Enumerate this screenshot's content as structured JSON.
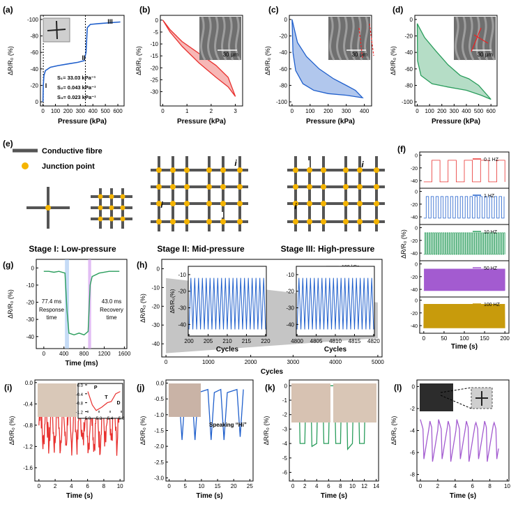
{
  "colors": {
    "red": "#e8312f",
    "blue": "#1f5fcc",
    "green": "#2a9d5c",
    "purple": "#a35bd0",
    "gold": "#c89b0c",
    "grid_dot": "#f5b400",
    "fibre": "#555555",
    "gray": "#9e9e9e"
  },
  "panels": {
    "a": {
      "label": "(a)",
      "xlabel": "Pressure (kPa)",
      "ylabel": "ΔR/R₀ (%)",
      "xticks": [
        "0",
        "100",
        "200",
        "300",
        "400",
        "500",
        "600"
      ],
      "yticks": [
        "-100",
        "-80",
        "-60",
        "-40",
        "-20",
        "0"
      ],
      "region_I": "I",
      "region_II": "II",
      "region_III": "III",
      "s1": "S₁= 33.03 kPa⁻¹",
      "s2": "S₂= 0.043 kPa⁻¹",
      "s3": "S₃= 0.023 kPa⁻¹",
      "curve": [
        [
          0,
          0
        ],
        [
          3,
          -20
        ],
        [
          8,
          -32
        ],
        [
          20,
          -38
        ],
        [
          60,
          -42
        ],
        [
          120,
          -44
        ],
        [
          200,
          -46
        ],
        [
          280,
          -48
        ],
        [
          330,
          -50
        ],
        [
          345,
          -60
        ],
        [
          355,
          -90
        ],
        [
          380,
          -94
        ],
        [
          450,
          -95
        ],
        [
          620,
          -97
        ]
      ]
    },
    "b": {
      "label": "(b)",
      "xlabel": "Pressure (kPa)",
      "ylabel": "ΔR/R₀ (%)",
      "xticks": [
        "0",
        "1",
        "2",
        "3"
      ],
      "yticks": [
        "0",
        "-5",
        "-10",
        "-15",
        "-20",
        "-25",
        "-30"
      ],
      "scale": "30 μm",
      "load": [
        [
          0,
          0
        ],
        [
          0.3,
          -4
        ],
        [
          0.8,
          -9
        ],
        [
          1.5,
          -14
        ],
        [
          2.2,
          -19
        ],
        [
          2.7,
          -24
        ],
        [
          3.0,
          -32
        ]
      ],
      "unload": [
        [
          3.0,
          -32
        ],
        [
          2.7,
          -28
        ],
        [
          2.2,
          -24
        ],
        [
          1.5,
          -18
        ],
        [
          0.8,
          -11
        ],
        [
          0.3,
          -5
        ],
        [
          0,
          0
        ]
      ]
    },
    "c": {
      "label": "(c)",
      "xlabel": "Pressure (kPa)",
      "ylabel": "ΔR/R₀ (%)",
      "xticks": [
        "0",
        "100",
        "200",
        "300",
        "400"
      ],
      "yticks": [
        "0",
        "-20",
        "-40",
        "-60",
        "-80",
        "-100"
      ],
      "scale": "30 μm",
      "load": [
        [
          0,
          0
        ],
        [
          5,
          -40
        ],
        [
          20,
          -62
        ],
        [
          60,
          -78
        ],
        [
          120,
          -86
        ],
        [
          200,
          -90
        ],
        [
          300,
          -92
        ],
        [
          390,
          -95
        ]
      ],
      "unload": [
        [
          390,
          -95
        ],
        [
          350,
          -86
        ],
        [
          300,
          -80
        ],
        [
          230,
          -72
        ],
        [
          150,
          -60
        ],
        [
          80,
          -45
        ],
        [
          30,
          -28
        ],
        [
          0,
          0
        ]
      ]
    },
    "d": {
      "label": "(d)",
      "xlabel": "Pressure (kPa)",
      "ylabel": "ΔR/R₀ (%)",
      "xticks": [
        "0",
        "100",
        "200",
        "300",
        "400",
        "500",
        "600"
      ],
      "yticks": [
        "0",
        "-20",
        "-40",
        "-60",
        "-80",
        "-100"
      ],
      "scale": "30 μm",
      "load": [
        [
          0,
          -5
        ],
        [
          2,
          -50
        ],
        [
          30,
          -68
        ],
        [
          120,
          -78
        ],
        [
          250,
          -82
        ],
        [
          400,
          -86
        ],
        [
          520,
          -92
        ],
        [
          600,
          -97
        ]
      ],
      "unload": [
        [
          600,
          -97
        ],
        [
          500,
          -80
        ],
        [
          420,
          -72
        ],
        [
          350,
          -68
        ],
        [
          250,
          -55
        ],
        [
          150,
          -38
        ],
        [
          60,
          -22
        ],
        [
          10,
          -8
        ],
        [
          0,
          -5
        ]
      ]
    },
    "e": {
      "label": "(e)",
      "legend_fibre": "Conductive fibre",
      "legend_junction": "Junction point",
      "stage1": "Stage I: Low-pressure",
      "stage2": "Stage II: Mid-pressure",
      "stage3": "Stage III: High-pressure",
      "i_mark": "i"
    },
    "f": {
      "label": "(f)",
      "ylabel": "ΔR/R₀ (%)",
      "xlabel": "Time (s)",
      "xticks": [
        "0",
        "50",
        "100",
        "150",
        "200"
      ],
      "subplots": [
        {
          "legend": "0.1 HZ",
          "yticks": [
            "0",
            "-20",
            "-40"
          ]
        },
        {
          "legend": "1 HZ",
          "yticks": [
            "0",
            "-20",
            "-40"
          ]
        },
        {
          "legend": "10 HZ",
          "yticks": [
            "0",
            "-20",
            "-40"
          ]
        },
        {
          "legend": "50 HZ",
          "yticks": [
            "0",
            "-20",
            "-40"
          ]
        },
        {
          "legend": "100 HZ",
          "yticks": [
            "0",
            "-20",
            "-40"
          ]
        }
      ]
    },
    "g": {
      "label": "(g)",
      "xlabel": "Time (ms)",
      "ylabel": "ΔR/R₀ (%)",
      "xticks": [
        "0",
        "400",
        "800",
        "1200",
        "1600"
      ],
      "yticks": [
        "0",
        "-10",
        "-20",
        "-30",
        "-40"
      ],
      "resp_value": "77.4 ms",
      "resp_label1": "Response",
      "resp_label2": "time",
      "rec_value": "43.0 ms",
      "rec_label1": "Recovery",
      "rec_label2": "time"
    },
    "h": {
      "label": "(h)",
      "xlabel": "Cycles",
      "ylabel": "ΔR/R₀ (%)",
      "legend": "100 kPa",
      "xticks": [
        "0",
        "1000",
        "2000",
        "3000",
        "4000",
        "5000"
      ],
      "yticks": [
        "0",
        "-10",
        "-20",
        "-30",
        "-40"
      ],
      "inset1": {
        "xlabel": "Cycles",
        "ylabel": "ΔR/R₀(%)",
        "xticks": [
          "200",
          "205",
          "210",
          "215",
          "220"
        ],
        "yticks": [
          "-10",
          "-20",
          "-30",
          "-40"
        ]
      },
      "inset2": {
        "xlabel": "Cycles",
        "xticks": [
          "4800",
          "4805",
          "4810",
          "4815",
          "4820"
        ],
        "yticks": [
          "-10",
          "-20",
          "-30",
          "-40"
        ]
      }
    },
    "i": {
      "label": "(i)",
      "xlabel": "Time (s)",
      "ylabel": "ΔR/R₀ (%)",
      "xticks": [
        "0",
        "2",
        "4",
        "6",
        "8",
        "10"
      ],
      "yticks": [
        "0.0",
        "-0.4",
        "-0.8",
        "-1.2",
        "-1.6"
      ],
      "inset_xticks": [
        "5.0",
        "5.2",
        "5.4",
        "5.6"
      ],
      "inset_yticks": [
        "-1.2",
        "-0.8",
        "-0.4",
        "0.0"
      ],
      "p": "P",
      "t": "T",
      "d": "D"
    },
    "j": {
      "label": "(j)",
      "xlabel": "Time (s)",
      "ylabel": "ΔR/R₀ (%)",
      "xticks": [
        "0",
        "5",
        "10",
        "15",
        "20",
        "25"
      ],
      "yticks": [
        "0.0",
        "-0.5",
        "-1.0",
        "-1.5",
        "-2.0",
        "-2.5",
        "-3.0"
      ],
      "annotation": "Speaking “Hi”"
    },
    "k": {
      "label": "(k)",
      "xlabel": "Time (s)",
      "ylabel": "ΔR/R₀ (%)",
      "xticks": [
        "0",
        "2",
        "4",
        "6",
        "8",
        "10",
        "12",
        "14"
      ],
      "yticks": [
        "0",
        "-1",
        "-2",
        "-3",
        "-4",
        "-5",
        "-6"
      ]
    },
    "l": {
      "label": "(l)",
      "xlabel": "Time (s)",
      "ylabel": "ΔR/R₀ (%)",
      "xticks": [
        "0",
        "2",
        "4",
        "6",
        "8",
        "10"
      ],
      "yticks": [
        "0",
        "-2",
        "-4",
        "-6",
        "-8"
      ]
    }
  }
}
